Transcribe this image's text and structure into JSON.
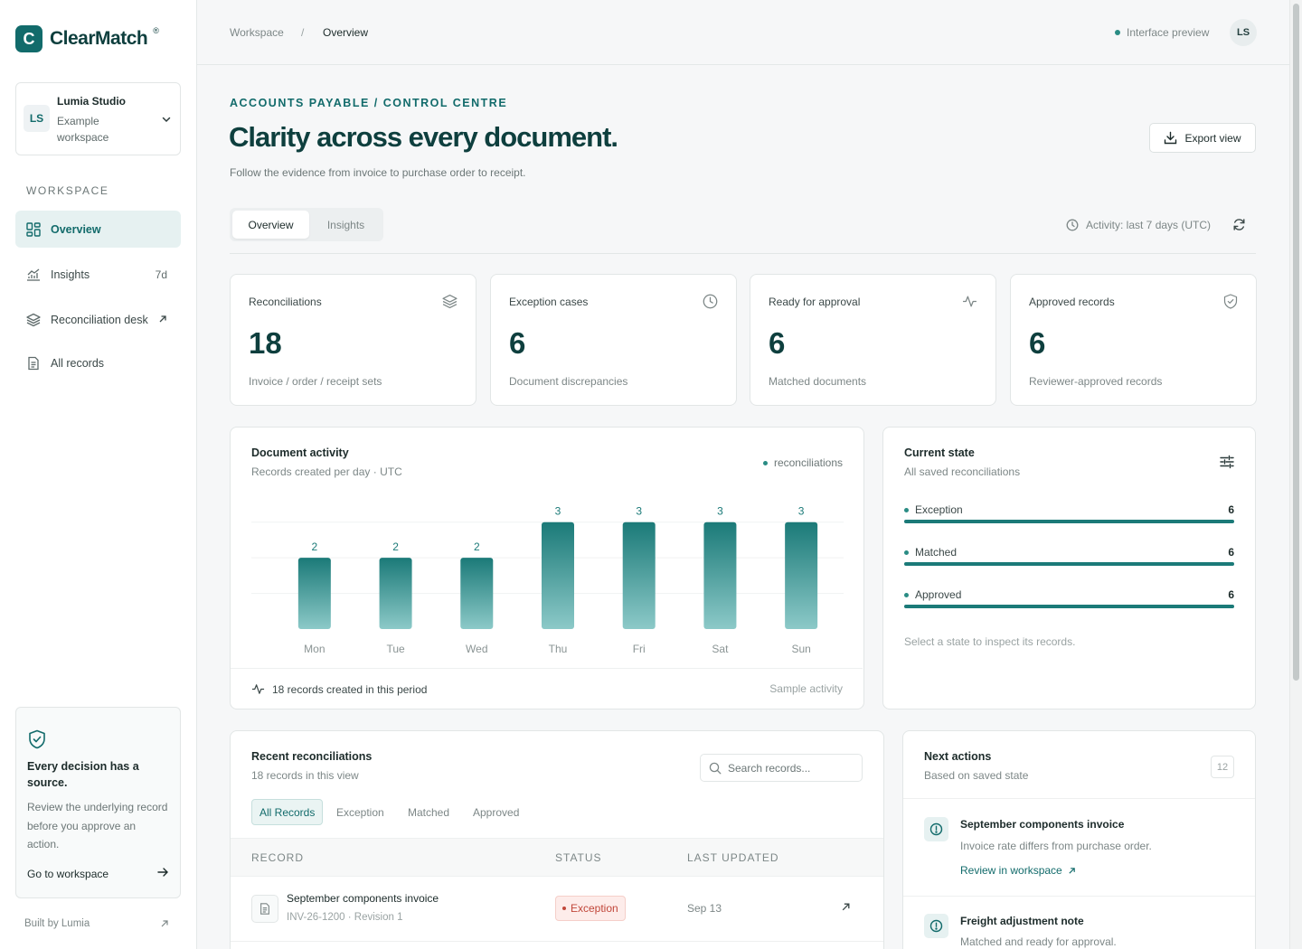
{
  "brand": {
    "mark": "C",
    "name": "ClearMatch",
    "reg": "®"
  },
  "workspace": {
    "initials": "LS",
    "name": "Lumia Studio",
    "subtitle": "Example workspace"
  },
  "nav": {
    "section_label": "WORKSPACE",
    "items": [
      {
        "label": "Overview",
        "icon": "grid-icon",
        "active": true,
        "trail": ""
      },
      {
        "label": "Insights",
        "icon": "chart-icon",
        "active": false,
        "trail": "7d"
      },
      {
        "label": "Reconciliation desk",
        "icon": "layers-icon",
        "active": false,
        "trail": "↗"
      },
      {
        "label": "All records",
        "icon": "document-icon",
        "active": false,
        "trail": ""
      }
    ]
  },
  "promo": {
    "title": "Every decision has a source.",
    "body": "Review the underlying record before you approve an action.",
    "link": "Go to workspace"
  },
  "footer": {
    "built_by": "Built by Lumia"
  },
  "topbar": {
    "breadcrumb": [
      "Workspace",
      "Overview"
    ],
    "separator": "/",
    "preview_label": "Interface preview",
    "user_initials": "LS"
  },
  "header": {
    "eyebrow": "ACCOUNTS PAYABLE / CONTROL CENTRE",
    "title": "Clarity across every document.",
    "subtitle": "Follow the evidence from invoice to purchase order to receipt.",
    "export_label": "Export view"
  },
  "tabs": {
    "items": [
      "Overview",
      "Insights"
    ],
    "active": "Overview"
  },
  "activity": {
    "label": "Activity: last 7 days (UTC)"
  },
  "kpis": [
    {
      "label": "Reconciliations",
      "value": "18",
      "sub": "Invoice / order / receipt sets",
      "icon": "layers-icon"
    },
    {
      "label": "Exception cases",
      "value": "6",
      "sub": "Document discrepancies",
      "icon": "clock-icon"
    },
    {
      "label": "Ready for approval",
      "value": "6",
      "sub": "Matched documents",
      "icon": "pulse-icon"
    },
    {
      "label": "Approved records",
      "value": "6",
      "sub": "Reviewer-approved records",
      "icon": "shield-check-icon"
    }
  ],
  "chart_card": {
    "title": "Document activity",
    "subtitle": "Records created per day · UTC",
    "footer_left": "18 records created in this period",
    "footer_right": "Sample activity"
  },
  "chart_data": {
    "type": "bar",
    "categories": [
      "Mon",
      "Tue",
      "Wed",
      "Thu",
      "Fri",
      "Sat",
      "Sun"
    ],
    "series": [
      {
        "name": "reconciliations",
        "values": [
          2,
          2,
          2,
          3,
          3,
          3,
          3
        ]
      }
    ],
    "title": "",
    "xlabel": "",
    "ylabel": "",
    "ylim": [
      0,
      3.5
    ],
    "grid": true,
    "legend_position": "top-right",
    "colors": {
      "bar_top": "#1b7a78",
      "bar_bottom": "#8cc9c8",
      "label": "#1b7a78"
    }
  },
  "state_card": {
    "title": "Current state",
    "subtitle": "All saved reconciliations",
    "rows": [
      {
        "label": "Exception",
        "value": "6",
        "fraction": 1.0
      },
      {
        "label": "Matched",
        "value": "6",
        "fraction": 1.0
      },
      {
        "label": "Approved",
        "value": "6",
        "fraction": 1.0
      }
    ],
    "hint": "Select a state to inspect its records."
  },
  "recent": {
    "title": "Recent reconciliations",
    "subtitle": "18 records in this view",
    "search_placeholder": "Search records...",
    "filters": [
      "All Records",
      "Exception",
      "Matched",
      "Approved"
    ],
    "active_filter": "All Records",
    "columns": [
      "RECORD",
      "STATUS",
      "LAST UPDATED"
    ],
    "rows": [
      {
        "title": "September components invoice",
        "sub": "INV-26-1200 · Revision 1",
        "status": "Exception",
        "updated": "Sep 13"
      }
    ]
  },
  "next_actions": {
    "title": "Next actions",
    "subtitle": "Based on saved state",
    "count": "12",
    "items": [
      {
        "title": "September components invoice",
        "body": "Invoice rate differs from purchase order.",
        "link": "Review in workspace"
      },
      {
        "title": "Freight adjustment note",
        "body": "Matched and ready for approval.",
        "link": ""
      }
    ]
  },
  "colors": {
    "accent": "#126b6b",
    "brand_dark": "#0e3f3e",
    "exception": "#c1473a"
  }
}
